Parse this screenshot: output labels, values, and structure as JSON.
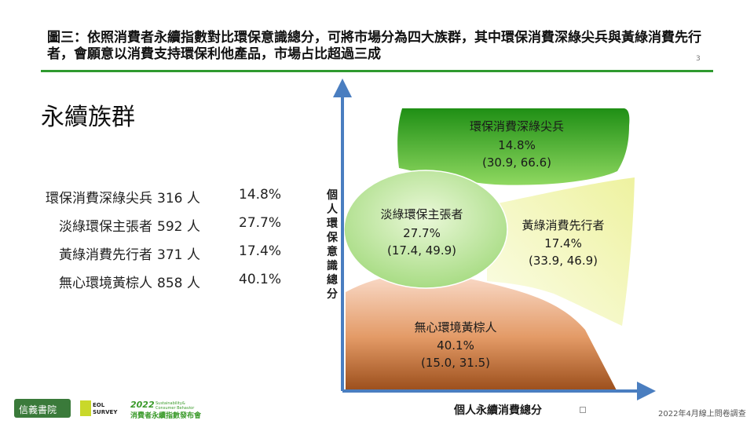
{
  "header": {
    "title": "圖三：依照消費者永續指數對比環保意識總分，可將市場分為四大族群，其中環保消費深綠尖兵與黃綠消費先行者，會願意以消費支持環保利他產品，市場占比超過三成",
    "page_number": "3"
  },
  "section_title": "永續族群",
  "stats": [
    {
      "name": "環保消費深綠尖兵",
      "count": "316 人",
      "percent": "14.8%"
    },
    {
      "name": "淡綠環保主張者",
      "count": "592 人",
      "percent": "27.7%"
    },
    {
      "name": "黃綠消費先行者",
      "count": "371 人",
      "percent": "17.4%"
    },
    {
      "name": "無心環境黃棕人",
      "count": "858 人",
      "percent": "40.1%"
    }
  ],
  "diagram": {
    "y_axis_label": "個人環保意識總分",
    "x_axis_label": "個人永續消費總分",
    "regions": [
      {
        "name": "環保消費深綠尖兵",
        "percent": "14.8%",
        "coords": "(30.9, 66.6)",
        "color": "#3fae1c"
      },
      {
        "name": "淡綠環保主張者",
        "percent": "27.7%",
        "coords": "(17.4, 49.9)",
        "color": "#b6e08c"
      },
      {
        "name": "黃綠消費先行者",
        "percent": "17.4%",
        "coords": "(33.9, 46.9)",
        "color": "#eef5c0"
      },
      {
        "name": "無心環境黃棕人",
        "percent": "40.1%",
        "coords": "(15.0, 31.5)",
        "color": "#d9875a"
      }
    ],
    "axis_color": "#4a7ec0"
  },
  "footer": {
    "source_note": "2022年4月線上問卷調查",
    "logos": [
      "信義書院",
      "EOL SURVEY",
      "2022 Sustainability & Consumer Behavior",
      "消費者永續指數發布會"
    ]
  }
}
